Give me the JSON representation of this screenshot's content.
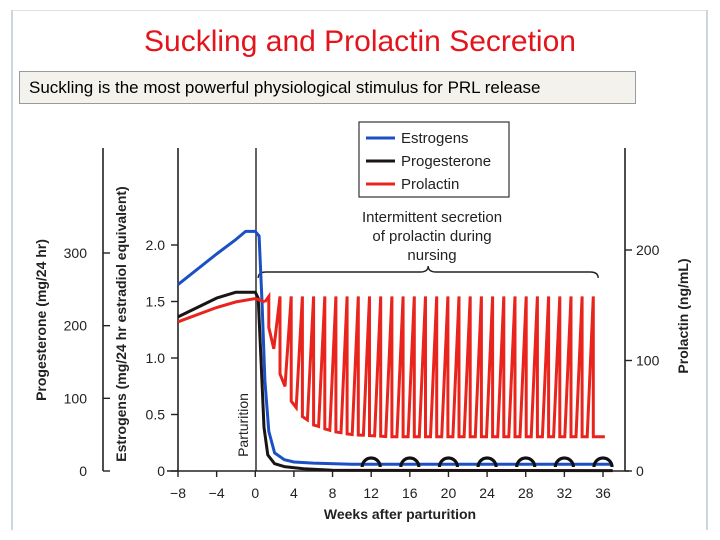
{
  "slide": {
    "title": "Suckling and Prolactin Secretion",
    "subtitle": "Suckling is the most powerful physiological stimulus for PRL release"
  },
  "chart_data": {
    "type": "line",
    "xlabel": "Weeks after parturition",
    "x_ticks": [
      -8,
      -4,
      0,
      4,
      8,
      12,
      16,
      20,
      24,
      28,
      32,
      36
    ],
    "xlim": [
      -8,
      37
    ],
    "axes": {
      "left_outer": {
        "label": "Progesterone (mg/24 hr)",
        "ticks": [
          0,
          100,
          200,
          300
        ],
        "ylim": [
          0,
          300
        ]
      },
      "left_inner": {
        "label": "Estrogens (mg/24 hr estradiol equivalent)",
        "ticks": [
          "0",
          "0.5",
          "1.0",
          "1.5",
          "2.0"
        ],
        "ylim": [
          0,
          2.0
        ]
      },
      "right": {
        "label": "Prolactin (ng/mL)",
        "ticks": [
          0,
          100,
          200
        ],
        "ylim": [
          0,
          200
        ]
      }
    },
    "legend": {
      "placement": "top-right",
      "entries": [
        {
          "name": "Estrogens",
          "color": "#1b4fc4"
        },
        {
          "name": "Progesterone",
          "color": "#1a1414"
        },
        {
          "name": "Prolactin",
          "color": "#e8241c"
        }
      ]
    },
    "annotations": {
      "parturition": "Parturition",
      "nursing_note": [
        "Intermittent secretion",
        "of prolactin during",
        "nursing"
      ]
    },
    "series": [
      {
        "name": "Estrogens",
        "axis": "left_inner",
        "color": "#1b4fc4",
        "points": [
          [
            -8,
            1.65
          ],
          [
            -4,
            1.92
          ],
          [
            -2,
            2.05
          ],
          [
            -1,
            2.12
          ],
          [
            0,
            2.12
          ],
          [
            0.4,
            2.08
          ],
          [
            0.7,
            1.5
          ],
          [
            1.0,
            0.8
          ],
          [
            1.4,
            0.35
          ],
          [
            2.0,
            0.16
          ],
          [
            3,
            0.1
          ],
          [
            4,
            0.08
          ],
          [
            6,
            0.07
          ],
          [
            10,
            0.06
          ],
          [
            37,
            0.06
          ]
        ]
      },
      {
        "name": "Progesterone",
        "axis": "left_outer",
        "color": "#1a1414",
        "points": [
          [
            -8,
            212
          ],
          [
            -4,
            238
          ],
          [
            -2,
            246
          ],
          [
            0,
            246
          ],
          [
            0.3,
            238
          ],
          [
            0.6,
            150
          ],
          [
            0.9,
            60
          ],
          [
            1.3,
            22
          ],
          [
            2.0,
            10
          ],
          [
            3,
            6
          ],
          [
            5,
            3
          ],
          [
            8,
            1
          ],
          [
            37,
            0.5
          ]
        ]
      },
      {
        "name": "Prolactin",
        "axis": "right",
        "color": "#e8241c",
        "baseline": [
          [
            -8,
            135
          ],
          [
            -4,
            148
          ],
          [
            -2,
            153
          ],
          [
            0,
            156
          ],
          [
            1,
            153
          ],
          [
            2,
            107
          ],
          [
            3,
            78
          ],
          [
            4,
            60
          ],
          [
            5,
            49
          ],
          [
            6,
            42
          ],
          [
            8,
            36
          ],
          [
            10,
            33
          ],
          [
            14,
            31
          ],
          [
            37,
            31
          ]
        ],
        "peak": 158,
        "peak_start_week": 1.4,
        "peak_end_week": 35.0,
        "peak_count": 30
      }
    ],
    "nursing_markers": {
      "weeks": [
        12,
        16,
        20,
        24,
        28,
        32,
        36
      ]
    }
  }
}
